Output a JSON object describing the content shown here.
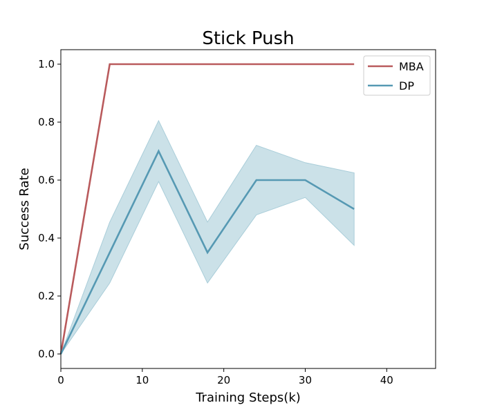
{
  "chart_data": {
    "type": "line",
    "title": "Stick Push",
    "xlabel": "Training Steps(k)",
    "ylabel": "Success Rate",
    "xlim": [
      0,
      46
    ],
    "ylim": [
      -0.05,
      1.05
    ],
    "xticks": [
      0,
      10,
      20,
      30,
      40
    ],
    "yticks": [
      0.0,
      0.2,
      0.4,
      0.6,
      0.8,
      1.0
    ],
    "grid": false,
    "legend_position": "top-right",
    "series": [
      {
        "name": "MBA",
        "color": "#b95a5c",
        "x": [
          0,
          6,
          12,
          18,
          24,
          30,
          36
        ],
        "y": [
          0.0,
          1.0,
          1.0,
          1.0,
          1.0,
          1.0,
          1.0
        ]
      },
      {
        "name": "DP",
        "color": "#5699b3",
        "band_color": "#a9cdd9",
        "x": [
          0,
          6,
          12,
          18,
          24,
          30,
          36
        ],
        "y": [
          0.0,
          0.35,
          0.7,
          0.35,
          0.6,
          0.6,
          0.5
        ],
        "y_lower": [
          0.0,
          0.245,
          0.595,
          0.245,
          0.48,
          0.54,
          0.375
        ],
        "y_upper": [
          0.0,
          0.455,
          0.805,
          0.455,
          0.72,
          0.66,
          0.625
        ]
      }
    ]
  }
}
